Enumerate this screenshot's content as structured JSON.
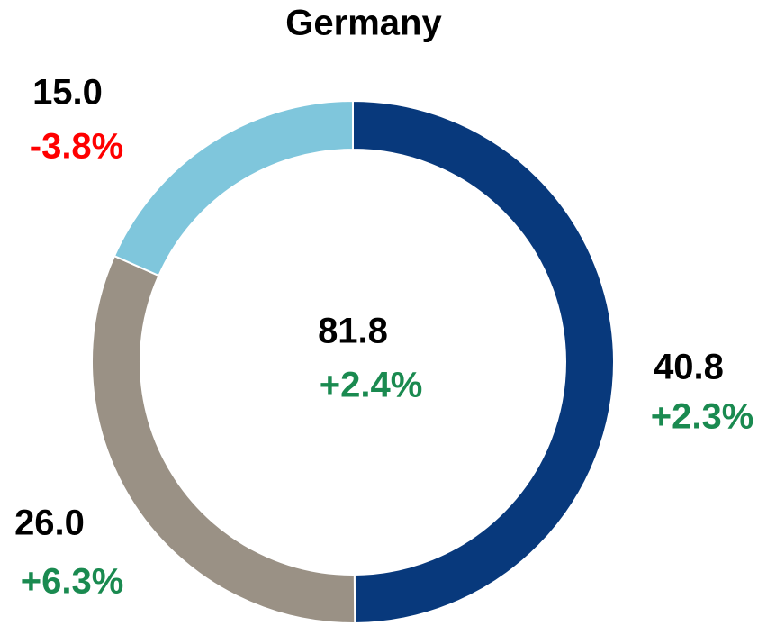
{
  "chart_data": {
    "type": "pie",
    "title": "Germany",
    "values": [
      40.8,
      26.0,
      15.0
    ],
    "value_labels": [
      "40.8",
      "26.0",
      "15.0"
    ],
    "colors": [
      "#08397c",
      "#9a9185",
      "#7fc6dc"
    ],
    "changes": [
      2.3,
      6.3,
      -3.8
    ],
    "change_labels": [
      "+2.3%",
      "+6.3%",
      "-3.8%"
    ],
    "total": 81.8,
    "total_change": 2.4,
    "total_change_label": "+2.4%",
    "positive_color": "#1a8a50",
    "negative_color": "#ff0000"
  }
}
